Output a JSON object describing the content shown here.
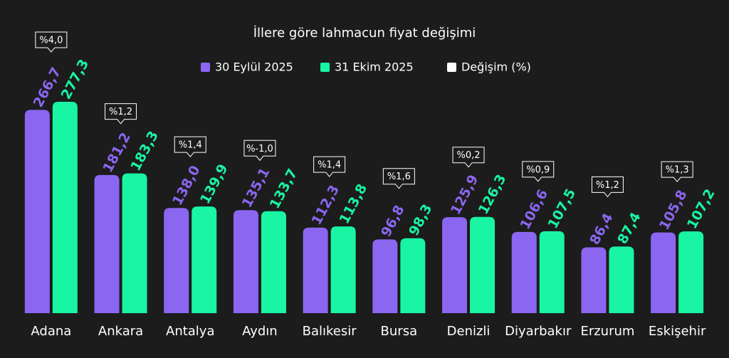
{
  "chart_data": {
    "type": "bar",
    "title": "İllere göre lahmacun fiyat değişimi",
    "categories": [
      "Adana",
      "Ankara",
      "Antalya",
      "Aydın",
      "Balıkesir",
      "Bursa",
      "Denizli",
      "Diyarbakır",
      "Erzurum",
      "Eskişehir"
    ],
    "series": [
      {
        "name": "30 Eylül 2025",
        "color": "#8b66f0",
        "values": [
          266.7,
          181.2,
          138.0,
          135.1,
          112.3,
          96.8,
          125.9,
          106.6,
          86.4,
          105.8
        ],
        "value_labels": [
          "266,7",
          "181,2",
          "138,0",
          "135,1",
          "112,3",
          "96,8",
          "125,9",
          "106,6",
          "86,4",
          "105,8"
        ]
      },
      {
        "name": "31 Ekim 2025",
        "color": "#19f5a3",
        "values": [
          277.3,
          183.3,
          139.9,
          133.7,
          113.8,
          98.3,
          126.3,
          107.5,
          87.4,
          107.2
        ],
        "value_labels": [
          "277,3",
          "183,3",
          "139,9",
          "133,7",
          "113,8",
          "98,3",
          "126,3",
          "107,5",
          "87,4",
          "107,2"
        ]
      },
      {
        "name": "Değişim (%)",
        "color": "#ffffff",
        "values": [
          4.0,
          1.2,
          1.4,
          -1.0,
          1.4,
          1.6,
          0.2,
          0.9,
          1.2,
          1.3
        ],
        "value_labels": [
          "%4,0",
          "%1,2",
          "%1,4",
          "%-1,0",
          "%1,4",
          "%1,6",
          "%0,2",
          "%0,9",
          "%1,2",
          "%1,3"
        ]
      }
    ]
  }
}
